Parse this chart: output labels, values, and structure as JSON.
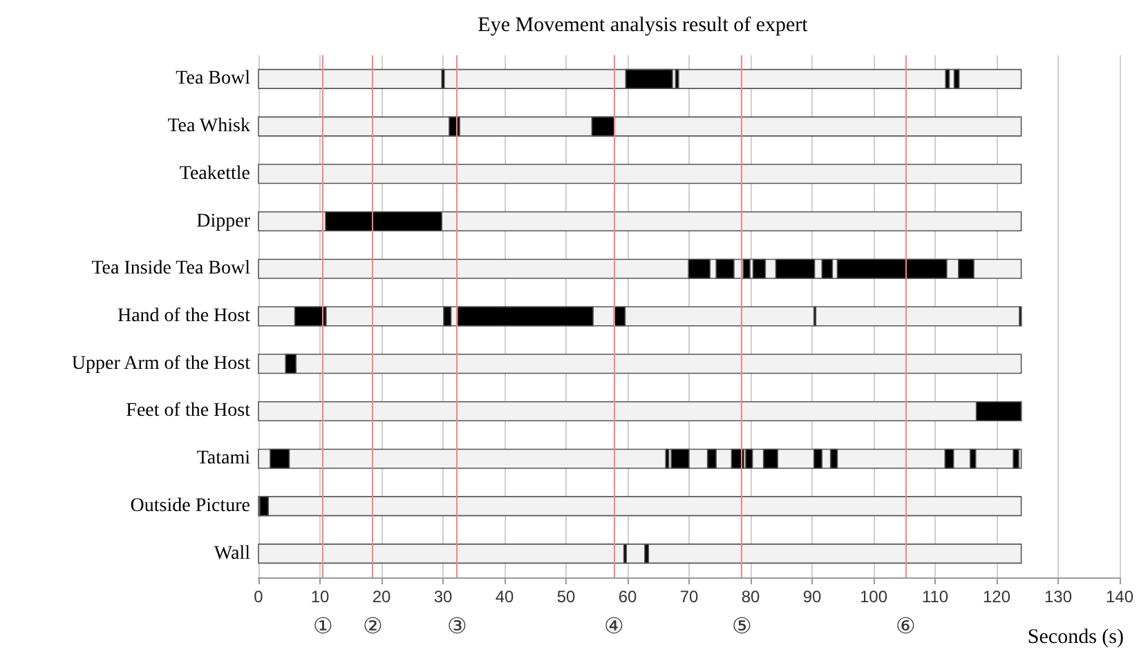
{
  "chart_data": {
    "type": "bar",
    "orientation": "horizontal",
    "title": "Eye Movement analysis result of expert",
    "xlabel": "Seconds (s)",
    "categories": [
      "Tea Bowl",
      "Tea Whisk",
      "Teakettle",
      "Dipper",
      "Tea Inside Tea Bowl",
      "Hand of the Host",
      "Upper Arm of the Host",
      "Feet of the Host",
      "Tatami",
      "Outside Picture",
      "Wall"
    ],
    "xlim": [
      0,
      140
    ],
    "xticks": [
      0,
      10,
      20,
      30,
      40,
      50,
      60,
      70,
      80,
      90,
      100,
      110,
      120,
      130,
      140
    ],
    "grid": "x",
    "series": [
      {
        "color": "#f2f2f2",
        "base": [
          0,
          0,
          0,
          0,
          0,
          0,
          0,
          0,
          0,
          0,
          0
        ],
        "values": [
          124,
          124,
          124,
          124,
          124,
          124,
          124,
          124,
          124,
          124,
          124
        ]
      },
      {
        "color": "#000000",
        "base": [
          29.8,
          31.0,
          null,
          10.9,
          69.9,
          5.9,
          4.4,
          116.7,
          1.9,
          0.2,
          59.4
        ],
        "values": [
          0.4,
          1.7,
          null,
          18.9,
          3.5,
          5.1,
          1.7,
          7.3,
          3.1,
          1.4,
          0.4
        ]
      },
      {
        "color": "#000000",
        "base": [
          59.7,
          54.2,
          null,
          null,
          74.4,
          30.1,
          null,
          null,
          66.2,
          null,
          62.8
        ],
        "values": [
          7.6,
          3.7,
          null,
          null,
          2.9,
          1.2,
          null,
          null,
          0.5,
          null,
          0.6
        ]
      },
      {
        "color": "#000000",
        "base": [
          67.8,
          null,
          null,
          null,
          78.8,
          32.4,
          null,
          null,
          67.1,
          null,
          null
        ],
        "values": [
          0.5,
          null,
          null,
          null,
          1.1,
          22.0,
          null,
          null,
          2.9,
          null,
          null
        ]
      },
      {
        "color": "#000000",
        "base": [
          111.7,
          null,
          null,
          null,
          80.4,
          57.8,
          null,
          null,
          73.0,
          null,
          null
        ],
        "values": [
          0.6,
          null,
          null,
          null,
          2.0,
          1.8,
          null,
          null,
          1.4,
          null,
          null
        ]
      },
      {
        "color": "#000000",
        "base": [
          113.1,
          null,
          null,
          null,
          84.1,
          90.3,
          null,
          null,
          76.9,
          null,
          null
        ],
        "values": [
          0.8,
          null,
          null,
          null,
          6.3,
          0.3,
          null,
          null,
          2.0,
          null,
          null
        ]
      },
      {
        "color": "#000000",
        "base": [
          null,
          null,
          null,
          null,
          91.6,
          123.7,
          null,
          null,
          79.2,
          null,
          null
        ],
        "values": [
          null,
          null,
          null,
          null,
          1.7,
          0.3,
          null,
          null,
          1.1,
          null,
          null
        ]
      },
      {
        "color": "#000000",
        "base": [
          null,
          null,
          null,
          null,
          94.1,
          null,
          null,
          null,
          82.1,
          null,
          null
        ],
        "values": [
          null,
          null,
          null,
          null,
          17.8,
          null,
          null,
          null,
          2.3,
          null,
          null
        ]
      },
      {
        "color": "#000000",
        "base": [
          null,
          null,
          null,
          null,
          113.8,
          null,
          null,
          null,
          90.3,
          null,
          null
        ],
        "values": [
          null,
          null,
          null,
          null,
          2.5,
          null,
          null,
          null,
          1.3,
          null,
          null
        ]
      },
      {
        "color": "#000000",
        "base": [
          null,
          null,
          null,
          null,
          null,
          null,
          null,
          null,
          93.0,
          null,
          null
        ],
        "values": [
          null,
          null,
          null,
          null,
          null,
          null,
          null,
          null,
          1.1,
          null,
          null
        ]
      },
      {
        "color": "#000000",
        "base": [
          null,
          null,
          null,
          null,
          null,
          null,
          null,
          null,
          111.6,
          null,
          null
        ],
        "values": [
          null,
          null,
          null,
          null,
          null,
          null,
          null,
          null,
          1.4,
          null,
          null
        ]
      },
      {
        "color": "#000000",
        "base": [
          null,
          null,
          null,
          null,
          null,
          null,
          null,
          null,
          115.7,
          null,
          null
        ],
        "values": [
          null,
          null,
          null,
          null,
          null,
          null,
          null,
          null,
          0.9,
          null,
          null
        ]
      },
      {
        "color": "#000000",
        "base": [
          null,
          null,
          null,
          null,
          null,
          null,
          null,
          null,
          122.7,
          null,
          null
        ],
        "values": [
          null,
          null,
          null,
          null,
          null,
          null,
          null,
          null,
          0.9,
          null,
          null
        ]
      }
    ],
    "ref_lines": [
      {
        "axis": "x",
        "value": 10.5,
        "label": "①",
        "color": "#ff8080"
      },
      {
        "axis": "x",
        "value": 18.5,
        "label": "②",
        "color": "#ff8080"
      },
      {
        "axis": "x",
        "value": 32.2,
        "label": "③",
        "color": "#ff8080"
      },
      {
        "axis": "x",
        "value": 57.8,
        "label": "④",
        "color": "#ff8080"
      },
      {
        "axis": "x",
        "value": 78.5,
        "label": "⑤",
        "color": "#ff8080"
      },
      {
        "axis": "x",
        "value": 105.2,
        "label": "⑥",
        "color": "#ff8080"
      }
    ]
  }
}
